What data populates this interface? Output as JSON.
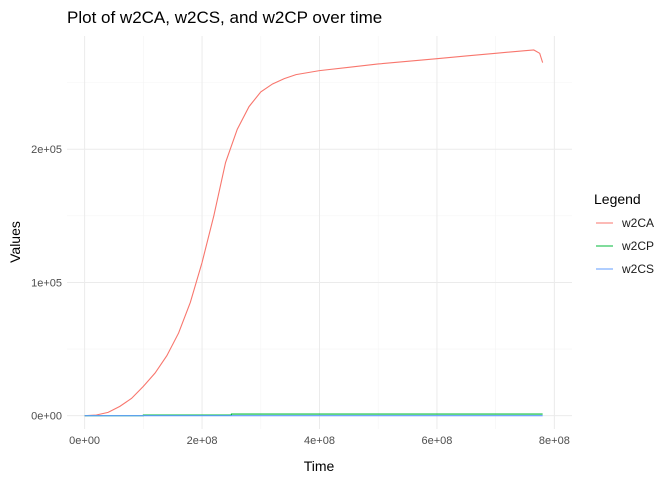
{
  "chart_data": {
    "type": "line",
    "title": "Plot of w2CA, w2CS, and w2CP over time",
    "xlabel": "Time",
    "ylabel": "Values",
    "xlim": [
      -30000000,
      830000000
    ],
    "ylim": [
      -10000,
      285000
    ],
    "x_ticks": [
      0,
      200000000,
      400000000,
      600000000,
      800000000
    ],
    "x_tick_labels": [
      "0e+00",
      "2e+08",
      "4e+08",
      "6e+08",
      "8e+08"
    ],
    "y_ticks": [
      0,
      100000,
      200000
    ],
    "y_tick_labels": [
      "0e+00",
      "1e+05",
      "2e+05"
    ],
    "grid": true,
    "legend": {
      "title": "Legend",
      "position": "right"
    },
    "series": [
      {
        "name": "w2CA",
        "color": "#F8766D",
        "x": [
          0,
          20000000,
          40000000,
          60000000,
          80000000,
          100000000,
          120000000,
          140000000,
          160000000,
          180000000,
          200000000,
          220000000,
          240000000,
          260000000,
          280000000,
          300000000,
          320000000,
          340000000,
          360000000,
          380000000,
          400000000,
          450000000,
          500000000,
          550000000,
          600000000,
          650000000,
          700000000,
          750000000,
          765000000,
          775000000,
          780000000
        ],
        "values": [
          0,
          500,
          2500,
          7000,
          13000,
          22000,
          32000,
          45000,
          62000,
          85000,
          115000,
          150000,
          190000,
          215000,
          232000,
          243000,
          249000,
          253000,
          256000,
          257500,
          259000,
          261500,
          264000,
          266000,
          268000,
          270000,
          272000,
          274000,
          274500,
          272000,
          265000
        ]
      },
      {
        "name": "w2CP",
        "color": "#00BA38",
        "x": [
          0,
          100000000,
          100000000,
          250000000,
          250000000,
          780000000
        ],
        "values": [
          0,
          0,
          500,
          500,
          1200,
          1200
        ]
      },
      {
        "name": "w2CS",
        "color": "#619CFF",
        "x": [
          0,
          780000000
        ],
        "values": [
          0,
          0
        ]
      }
    ]
  }
}
